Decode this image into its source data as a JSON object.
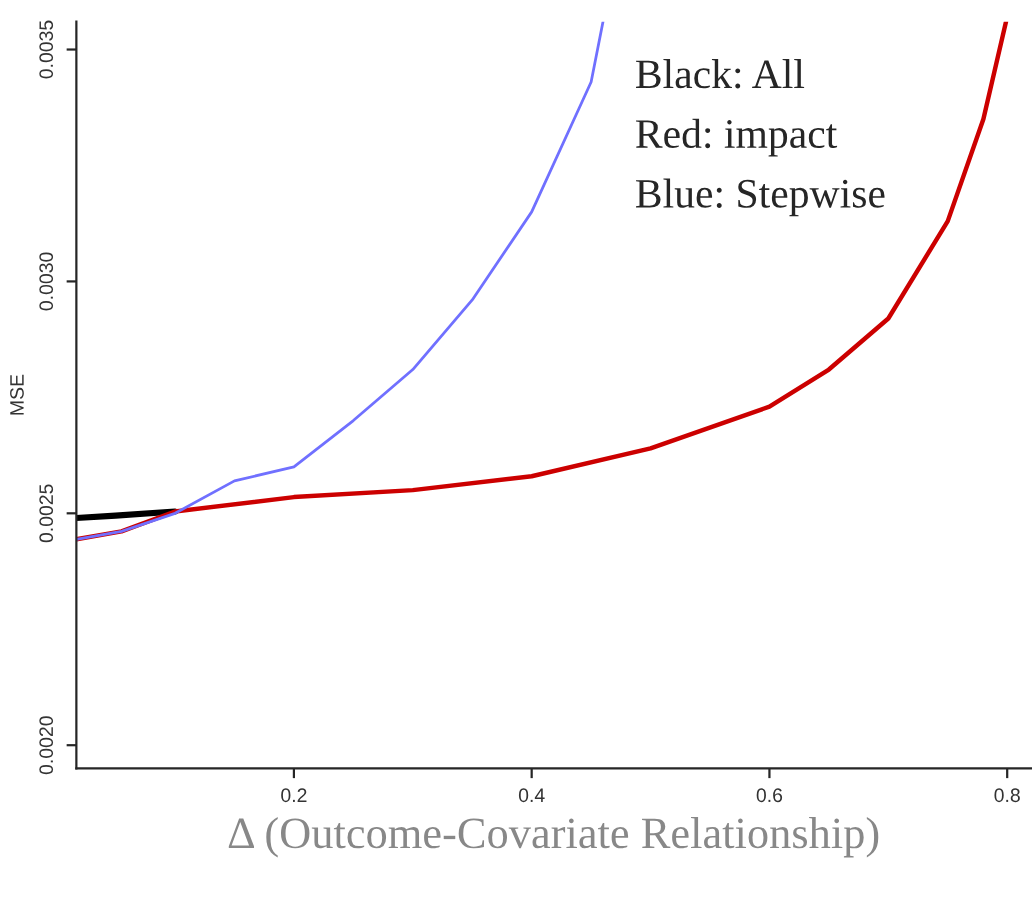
{
  "chart_data": {
    "type": "line",
    "xlabel": "Δ (Outcome-Covariate Relationship)",
    "ylabel": "MSE",
    "annotations": [
      "Black: All",
      "Red: impact",
      "Blue: Stepwise"
    ],
    "xlim": [
      0.017,
      0.82
    ],
    "ylim": [
      0.00195,
      0.00356
    ],
    "xticks": [
      0.2,
      0.4,
      0.6,
      0.8
    ],
    "yticks": [
      {
        "value": 0.002,
        "label": "0.0020"
      },
      {
        "value": 0.0025,
        "label": "0.0025"
      },
      {
        "value": 0.003,
        "label": "0.0030"
      },
      {
        "value": 0.0035,
        "label": "0.0035"
      }
    ],
    "series": [
      {
        "color": "#000000",
        "x": [
          0.017,
          0.05,
          0.1
        ],
        "values": [
          0.00249,
          0.002495,
          0.002504
        ]
      },
      {
        "color": "#cc0000",
        "x": [
          0.017,
          0.055,
          0.1,
          0.2,
          0.3,
          0.4,
          0.5,
          0.6,
          0.65,
          0.7,
          0.75,
          0.78,
          0.799
        ],
        "values": [
          0.002444,
          0.002461,
          0.002504,
          0.002535,
          0.00255,
          0.00258,
          0.00264,
          0.00273,
          0.00281,
          0.00292,
          0.00313,
          0.00335,
          0.00356
        ]
      },
      {
        "color": "#7070ff",
        "x": [
          0.017,
          0.055,
          0.1,
          0.15,
          0.2,
          0.25,
          0.3,
          0.35,
          0.4,
          0.45,
          0.46
        ],
        "values": [
          0.002444,
          0.002461,
          0.0025,
          0.00257,
          0.0026,
          0.0027,
          0.00281,
          0.00296,
          0.00315,
          0.00343,
          0.00356
        ]
      }
    ]
  }
}
